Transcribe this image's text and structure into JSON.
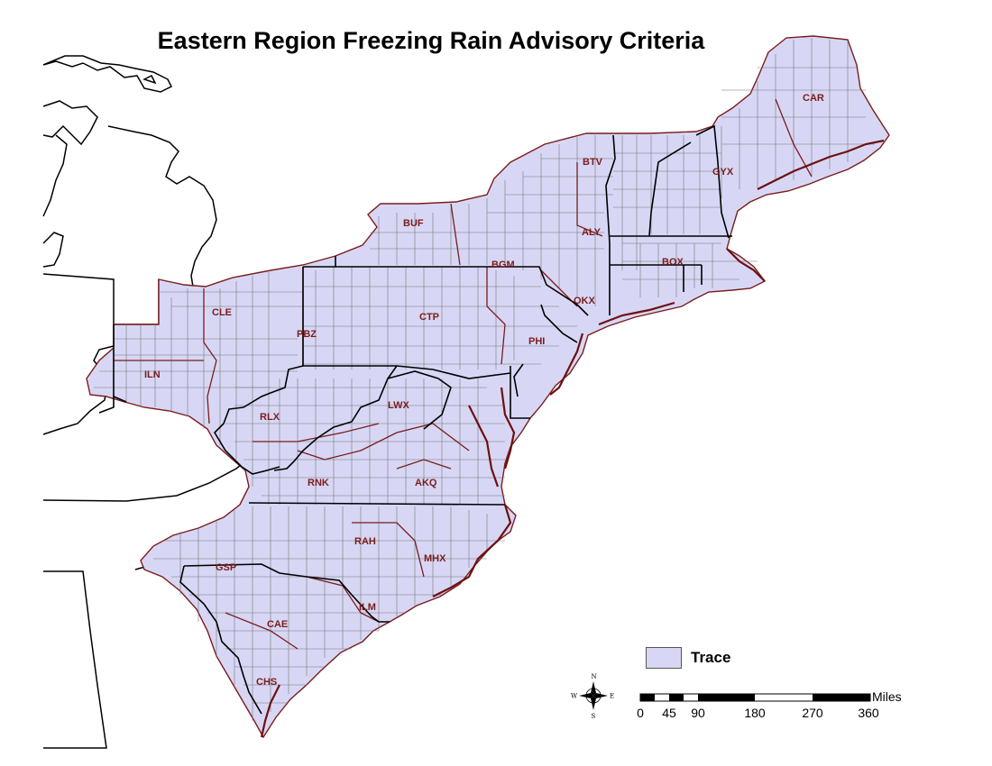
{
  "title": "Eastern Region Freezing Rain Advisory Criteria",
  "colors": {
    "fill": "#d7d7f5",
    "county_lines": "#666666",
    "cwa_lines": "#7a1c1c",
    "state_lines": "#000000",
    "label": "#7a1c1c"
  },
  "offices": [
    {
      "id": "CAR",
      "label": "CAR"
    },
    {
      "id": "GYX",
      "label": "GYX"
    },
    {
      "id": "BTV",
      "label": "BTV"
    },
    {
      "id": "BUF",
      "label": "BUF"
    },
    {
      "id": "ALY",
      "label": "ALY"
    },
    {
      "id": "BOX",
      "label": "BOX"
    },
    {
      "id": "BGM",
      "label": "BGM"
    },
    {
      "id": "OKX",
      "label": "OKX"
    },
    {
      "id": "CLE",
      "label": "CLE"
    },
    {
      "id": "CTP",
      "label": "CTP"
    },
    {
      "id": "PBZ",
      "label": "PBZ"
    },
    {
      "id": "PHI",
      "label": "PHI"
    },
    {
      "id": "ILN",
      "label": "ILN"
    },
    {
      "id": "RLX",
      "label": "RLX"
    },
    {
      "id": "LWX",
      "label": "LWX"
    },
    {
      "id": "AKQ",
      "label": "AKQ"
    },
    {
      "id": "RNK",
      "label": "RNK"
    },
    {
      "id": "RAH",
      "label": "RAH"
    },
    {
      "id": "MHX",
      "label": "MHX"
    },
    {
      "id": "GSP",
      "label": "GSP"
    },
    {
      "id": "ILM",
      "label": "ILM"
    },
    {
      "id": "CAE",
      "label": "CAE"
    },
    {
      "id": "CHS",
      "label": "CHS"
    }
  ],
  "legend": {
    "label": "Trace",
    "color": "#d7d7f5"
  },
  "compass": {
    "n": "N",
    "s": "S",
    "e": "E",
    "w": "W"
  },
  "scale": {
    "units": "Miles",
    "ticks": [
      "0",
      "45",
      "90",
      "180",
      "270",
      "360"
    ]
  }
}
